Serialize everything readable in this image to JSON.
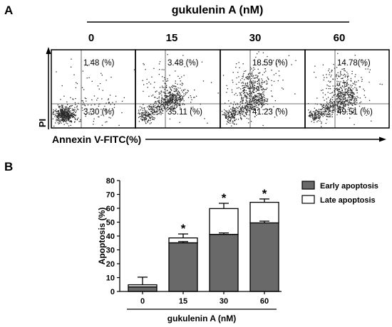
{
  "figure": {
    "panel_a": "A",
    "panel_b": "B"
  },
  "chart_data": [
    {
      "type": "scatter",
      "title": "gukulenin A (nM)",
      "categories": [
        "0",
        "15",
        "30",
        "60"
      ],
      "xlabel": "Annexin V-FITC(%)",
      "ylabel": "PI",
      "quadrants": [
        {
          "upper_right": "1.48 (%)",
          "lower_right": "3.30 (%)"
        },
        {
          "upper_right": "3.48 (%)",
          "lower_right": "35.11 (%)"
        },
        {
          "upper_right": "18.59 (%)",
          "lower_right": "41.23 (%)"
        },
        {
          "upper_right": "14.78(%)",
          "lower_right": "49.51 (%)"
        }
      ]
    },
    {
      "type": "bar",
      "stacked": true,
      "categories": [
        "0",
        "15",
        "30",
        "60"
      ],
      "series": [
        {
          "name": "Early apoptosis",
          "values": [
            3.3,
            35.1,
            41.2,
            49.5
          ],
          "error": [
            0,
            0.9,
            1.0,
            1.2
          ],
          "color": "#696969"
        },
        {
          "name": "Late apoptosis",
          "values": [
            1.5,
            3.5,
            18.6,
            14.8
          ],
          "error": [
            5.5,
            2.9,
            3.8,
            2.4
          ],
          "color": "#ffffff"
        }
      ],
      "xlabel": "gukulenin A (nM)",
      "ylabel": "Apoptosis (%)",
      "ylim": [
        0,
        80
      ],
      "yticks": [
        0,
        10,
        20,
        30,
        40,
        50,
        60,
        70,
        80
      ],
      "annotations": [
        "",
        "*",
        "*",
        "*"
      ],
      "legend": "right",
      "grid": false
    }
  ]
}
